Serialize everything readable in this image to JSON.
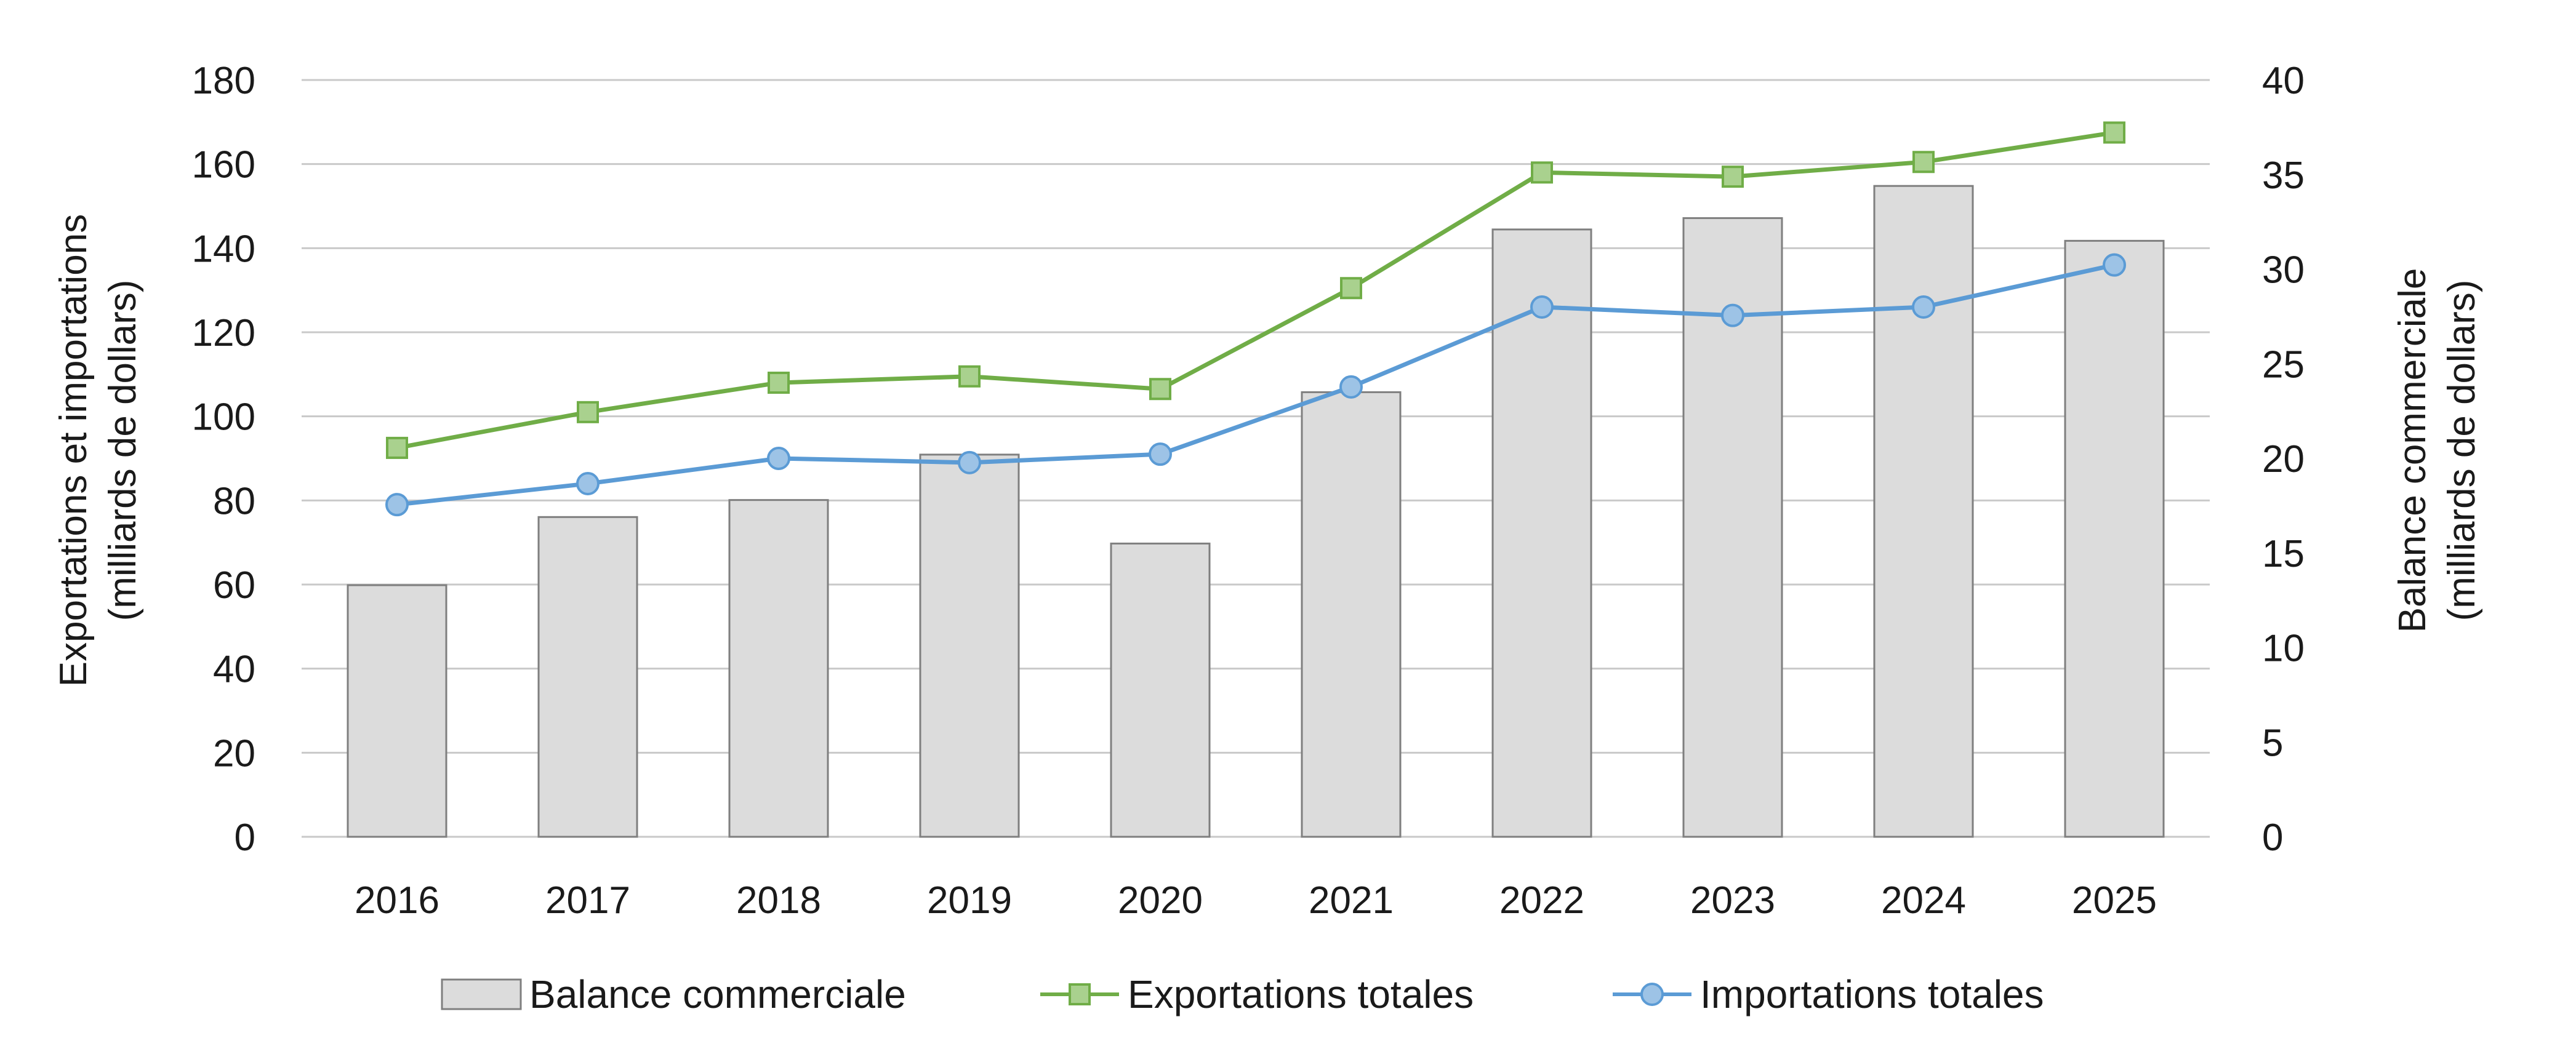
{
  "chart_data": {
    "type": "bar",
    "categories": [
      "2016",
      "2017",
      "2018",
      "2019",
      "2020",
      "2021",
      "2022",
      "2023",
      "2024",
      "2025"
    ],
    "series": [
      {
        "name": "Balance commerciale",
        "type": "bar",
        "axis": "right",
        "values": [
          13.3,
          16.9,
          17.8,
          20.2,
          15.5,
          23.5,
          32.1,
          32.7,
          34.4,
          31.5
        ],
        "color": "#dcdcdc",
        "stroke": "#7f7f7f"
      },
      {
        "name": "Exportations totales",
        "type": "line",
        "axis": "left",
        "marker": "square",
        "values": [
          92.5,
          101,
          108,
          109.5,
          106.5,
          130.5,
          158,
          157,
          160.5,
          167.5
        ],
        "color": "#70ad47",
        "marker_fill": "#a9d18e"
      },
      {
        "name": "Importations totales",
        "type": "line",
        "axis": "left",
        "marker": "circle",
        "values": [
          79,
          84,
          90,
          89,
          91,
          107,
          126,
          124,
          126,
          136
        ],
        "color": "#5b9bd5",
        "marker_fill": "#9dc3e6"
      }
    ],
    "ylabel_left": [
      "Exportations et importations",
      "(milliards de dollars)"
    ],
    "ylabel_right": [
      "Balance commerciale",
      "(milliards de dollars)"
    ],
    "ylim_left": [
      0,
      180
    ],
    "yticks_left": [
      0,
      20,
      40,
      60,
      80,
      100,
      120,
      140,
      160,
      180
    ],
    "ylim_right": [
      0,
      40
    ],
    "yticks_right": [
      0,
      5,
      10,
      15,
      20,
      25,
      30,
      35,
      40
    ],
    "grid": true,
    "legend_position": "bottom"
  }
}
